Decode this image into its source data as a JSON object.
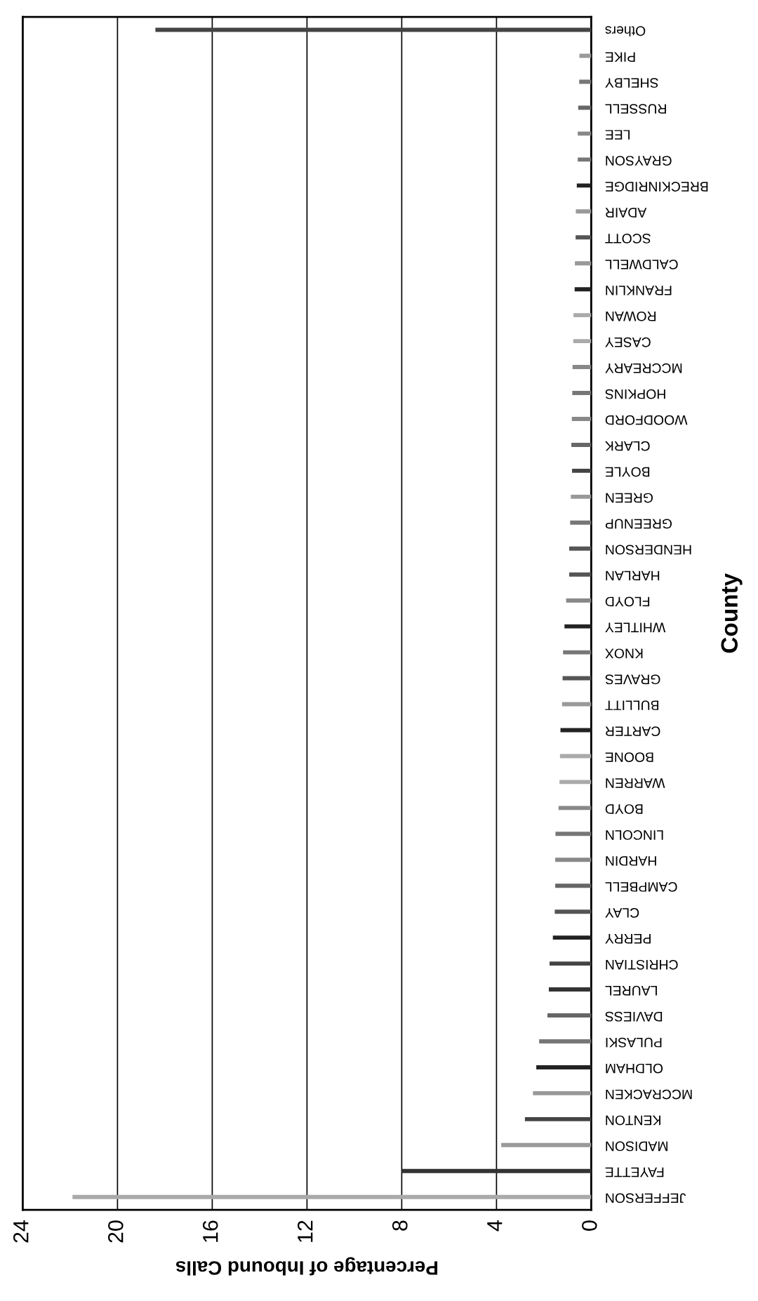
{
  "chart_data": {
    "type": "bar",
    "orientation": "horizontal",
    "xlabel": "Percentage of Inbound Calls",
    "ylabel": "County",
    "categories": [
      "Others",
      "PIKE",
      "SHELBY",
      "RUSSELL",
      "LEE",
      "GRAYSON",
      "BRECKINRIDGE",
      "ADAIR",
      "SCOTT",
      "CALDWELL",
      "FRANKLIN",
      "ROWAN",
      "CASEY",
      "MCCREARY",
      "HOPKINS",
      "WOODFORD",
      "CLARK",
      "BOYLE",
      "GREEN",
      "GREENUP",
      "HENDERSON",
      "HARLAN",
      "FLOYD",
      "WHITLEY",
      "KNOX",
      "GRAVES",
      "BULLITT",
      "CARTER",
      "BOONE",
      "WARREN",
      "BOYD",
      "LINCOLN",
      "HARDIN",
      "CAMPBELL",
      "CLAY",
      "PERRY",
      "CHRISTIAN",
      "LAUREL",
      "DAVIESS",
      "PULASKI",
      "OLDHAM",
      "MCCRACKEN",
      "KENTON",
      "MADISON",
      "FAYETTE",
      "JEFFERSON"
    ],
    "values": [
      18.4,
      0.5,
      0.51,
      0.55,
      0.57,
      0.57,
      0.61,
      0.65,
      0.66,
      0.69,
      0.7,
      0.75,
      0.76,
      0.79,
      0.8,
      0.82,
      0.84,
      0.81,
      0.86,
      0.89,
      0.93,
      0.93,
      1.06,
      1.13,
      1.19,
      1.21,
      1.23,
      1.3,
      1.32,
      1.34,
      1.38,
      1.51,
      1.52,
      1.52,
      1.54,
      1.62,
      1.76,
      1.79,
      1.85,
      2.2,
      2.32,
      2.46,
      2.8,
      3.8,
      8.0,
      21.9
    ],
    "colors": [
      "#444444",
      "#999999",
      "#777777",
      "#666666",
      "#888888",
      "#777777",
      "#222222",
      "#999999",
      "#555555",
      "#999999",
      "#222222",
      "#aaaaaa",
      "#aaaaaa",
      "#888888",
      "#777777",
      "#888888",
      "#666666",
      "#444444",
      "#999999",
      "#777777",
      "#555555",
      "#555555",
      "#888888",
      "#222222",
      "#777777",
      "#555555",
      "#999999",
      "#222222",
      "#aaaaaa",
      "#aaaaaa",
      "#888888",
      "#777777",
      "#888888",
      "#666666",
      "#555555",
      "#222222",
      "#444444",
      "#333333",
      "#666666",
      "#777777",
      "#222222",
      "#999999",
      "#444444",
      "#999999",
      "#333333",
      "#aaaaaa"
    ],
    "xlim": [
      24,
      0
    ],
    "xticks": [
      0,
      4,
      8,
      12,
      16,
      20,
      24
    ],
    "grid": "x"
  }
}
